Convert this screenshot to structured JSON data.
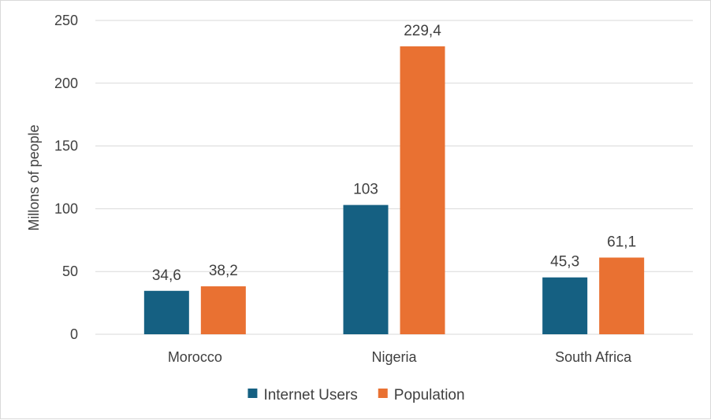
{
  "chart_data": {
    "type": "bar",
    "categories": [
      "Morocco",
      "Nigeria",
      "South Africa"
    ],
    "series": [
      {
        "name": "Internet Users",
        "values": [
          34.6,
          103,
          45.3
        ],
        "labels": [
          "34,6",
          "103",
          "45,3"
        ],
        "color": "#156082"
      },
      {
        "name": "Population",
        "values": [
          38.2,
          229.4,
          61.1
        ],
        "labels": [
          "38,2",
          "229,4",
          "61,1"
        ],
        "color": "#E97132"
      }
    ],
    "ylabel": "Millons of people",
    "ylim": [
      0,
      250
    ],
    "yticks": [
      0,
      50,
      100,
      150,
      200,
      250
    ],
    "grid": true,
    "legend": "bottom-center",
    "gridColor": "#d9d9d9",
    "textColor": "#404040"
  }
}
